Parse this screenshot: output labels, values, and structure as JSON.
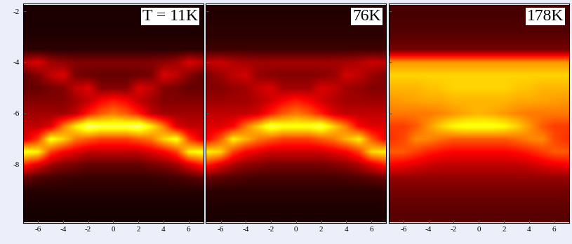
{
  "chart_data": [
    {
      "type": "heatmap",
      "annotation": "T = 11K",
      "x": [
        -7,
        -6,
        -5,
        -4,
        -3,
        -2,
        -1,
        0,
        1,
        2,
        3,
        4,
        5,
        6,
        7
      ],
      "y": [
        -2,
        -2.5,
        -3,
        -3.5,
        -4,
        -4.5,
        -5,
        -5.5,
        -6,
        -6.5,
        -7,
        -7.5,
        -8,
        -8.5,
        -9,
        -9.5,
        -10
      ],
      "values": [
        [
          0.3,
          0.3,
          0.3,
          0.3,
          0.3,
          0.3,
          0.3,
          0.3,
          0.3,
          0.3,
          0.3,
          0.3,
          0.3,
          0.3,
          0.3
        ],
        [
          0.3,
          0.3,
          0.3,
          0.3,
          0.3,
          0.3,
          0.3,
          0.3,
          0.3,
          0.3,
          0.3,
          0.3,
          0.3,
          0.3,
          0.3
        ],
        [
          0.4,
          0.4,
          0.4,
          0.4,
          0.4,
          0.4,
          0.4,
          0.4,
          0.4,
          0.4,
          0.4,
          0.4,
          0.4,
          0.4,
          0.4
        ],
        [
          0.6,
          0.6,
          0.6,
          0.6,
          0.6,
          0.6,
          0.6,
          0.6,
          0.6,
          0.6,
          0.6,
          0.6,
          0.6,
          0.6,
          0.6
        ],
        [
          3,
          3.5,
          2.5,
          2.2,
          2,
          2,
          2,
          2,
          2,
          2,
          2,
          2.2,
          2.5,
          3.5,
          3
        ],
        [
          1.5,
          2,
          3,
          3.5,
          1.8,
          1.6,
          1.5,
          1.5,
          1.5,
          1.6,
          1.8,
          3.5,
          3,
          2,
          1.5
        ],
        [
          1.5,
          1.5,
          1.8,
          2,
          3,
          3.5,
          2,
          2,
          2,
          3.5,
          3,
          2,
          1.8,
          1.5,
          1.5
        ],
        [
          2,
          2,
          2,
          2,
          2.5,
          3,
          4,
          4.5,
          4,
          3,
          2.5,
          2,
          2,
          2,
          2
        ],
        [
          2.5,
          2.5,
          2.5,
          2.5,
          3,
          4.5,
          5.5,
          6,
          5.5,
          4.5,
          3,
          2.5,
          2.5,
          2.5,
          2.5
        ],
        [
          3,
          3,
          3.5,
          6,
          8,
          9.5,
          9,
          9,
          9,
          9.5,
          8,
          6,
          3.5,
          3,
          3
        ],
        [
          3.5,
          5,
          8.5,
          7.5,
          6,
          5.5,
          5,
          5,
          5,
          5.5,
          6,
          7.5,
          8.5,
          5,
          3.5
        ],
        [
          8.5,
          8,
          5,
          4,
          3.5,
          3,
          3,
          3,
          3,
          3,
          3.5,
          4,
          5,
          8,
          8.5
        ],
        [
          4.5,
          3.5,
          2.5,
          2,
          1.8,
          1.5,
          1.5,
          1.5,
          1.5,
          1.5,
          1.8,
          2,
          2.5,
          3.5,
          4.5
        ],
        [
          1.5,
          1.2,
          1,
          0.9,
          0.8,
          0.8,
          0.8,
          0.8,
          0.8,
          0.8,
          0.8,
          0.9,
          1,
          1.2,
          1.5
        ],
        [
          0.5,
          0.5,
          0.5,
          0.5,
          0.5,
          0.5,
          0.5,
          0.5,
          0.5,
          0.5,
          0.5,
          0.5,
          0.5,
          0.5,
          0.5
        ],
        [
          0.3,
          0.3,
          0.3,
          0.3,
          0.3,
          0.3,
          0.3,
          0.3,
          0.3,
          0.3,
          0.3,
          0.3,
          0.3,
          0.3,
          0.3
        ],
        [
          0.2,
          0.2,
          0.2,
          0.2,
          0.2,
          0.2,
          0.2,
          0.2,
          0.2,
          0.2,
          0.2,
          0.2,
          0.2,
          0.2,
          0.2
        ]
      ],
      "color_range": [
        0,
        11
      ],
      "xlim": [
        -7.2,
        7.2
      ],
      "ylim": [
        -10.3,
        -1.7
      ],
      "xticks": [
        -6,
        -4,
        -2,
        0,
        2,
        4,
        6
      ],
      "yticks": [
        -8,
        -6,
        -4,
        -2
      ],
      "tick_labels": true
    },
    {
      "type": "heatmap",
      "annotation": "76K",
      "x": [
        -7,
        -6,
        -5,
        -4,
        -3,
        -2,
        -1,
        0,
        1,
        2,
        3,
        4,
        5,
        6,
        7
      ],
      "y": [
        -2,
        -2.5,
        -3,
        -3.5,
        -4,
        -4.5,
        -5,
        -5.5,
        -6,
        -6.5,
        -7,
        -7.5,
        -8,
        -8.5,
        -9,
        -9.5,
        -10
      ],
      "values": [
        [
          0.4,
          0.4,
          0.4,
          0.4,
          0.4,
          0.4,
          0.4,
          0.4,
          0.4,
          0.4,
          0.4,
          0.4,
          0.4,
          0.4,
          0.4
        ],
        [
          0.5,
          0.5,
          0.5,
          0.5,
          0.5,
          0.5,
          0.5,
          0.5,
          0.5,
          0.5,
          0.5,
          0.5,
          0.5,
          0.5,
          0.5
        ],
        [
          0.6,
          0.6,
          0.6,
          0.6,
          0.6,
          0.6,
          0.6,
          0.6,
          0.6,
          0.6,
          0.6,
          0.6,
          0.6,
          0.6,
          0.6
        ],
        [
          0.9,
          0.9,
          0.9,
          0.9,
          0.9,
          0.9,
          0.9,
          0.9,
          0.9,
          0.9,
          0.9,
          0.9,
          0.9,
          0.9,
          0.9
        ],
        [
          3,
          3.2,
          2.8,
          2.6,
          2.5,
          2.5,
          2.5,
          2.5,
          2.5,
          2.5,
          2.5,
          2.6,
          2.8,
          3.2,
          3
        ],
        [
          2,
          2.4,
          3,
          3.3,
          2.3,
          2.1,
          2,
          2,
          2,
          2.1,
          2.3,
          3.3,
          3,
          2.4,
          2
        ],
        [
          2,
          2,
          2.3,
          2.5,
          3.1,
          3.4,
          2.5,
          2.5,
          2.5,
          3.4,
          3.1,
          2.5,
          2.3,
          2,
          2
        ],
        [
          2.4,
          2.4,
          2.5,
          2.5,
          2.8,
          3.3,
          4,
          4.5,
          4,
          3.3,
          2.8,
          2.5,
          2.5,
          2.4,
          2.4
        ],
        [
          3,
          3,
          3,
          3,
          3.4,
          4.5,
          5.5,
          6,
          5.5,
          4.5,
          3.4,
          3,
          3,
          3,
          3
        ],
        [
          3.5,
          3.5,
          4,
          6,
          7.5,
          9,
          8.5,
          8.5,
          8.5,
          9,
          7.5,
          6,
          4,
          3.5,
          3.5
        ],
        [
          4,
          5.5,
          8,
          7,
          6,
          5.5,
          5,
          5,
          5,
          5.5,
          6,
          7,
          8,
          5.5,
          4
        ],
        [
          8,
          7.5,
          5,
          4,
          3.6,
          3.2,
          3.2,
          3.2,
          3.2,
          3.2,
          3.6,
          4,
          5,
          7.5,
          8
        ],
        [
          4.5,
          3.5,
          2.7,
          2.2,
          2,
          1.8,
          1.8,
          1.8,
          1.8,
          1.8,
          2,
          2.2,
          2.7,
          3.5,
          4.5
        ],
        [
          1.6,
          1.4,
          1.2,
          1.1,
          1,
          1,
          1,
          1,
          1,
          1,
          1,
          1.1,
          1.2,
          1.4,
          1.6
        ],
        [
          0.6,
          0.6,
          0.6,
          0.6,
          0.6,
          0.6,
          0.6,
          0.6,
          0.6,
          0.6,
          0.6,
          0.6,
          0.6,
          0.6,
          0.6
        ],
        [
          0.4,
          0.4,
          0.4,
          0.4,
          0.4,
          0.4,
          0.4,
          0.4,
          0.4,
          0.4,
          0.4,
          0.4,
          0.4,
          0.4,
          0.4
        ],
        [
          0.3,
          0.3,
          0.3,
          0.3,
          0.3,
          0.3,
          0.3,
          0.3,
          0.3,
          0.3,
          0.3,
          0.3,
          0.3,
          0.3,
          0.3
        ]
      ],
      "color_range": [
        0,
        11
      ],
      "xlim": [
        -7.2,
        7.2
      ],
      "ylim": [
        -10.3,
        -1.7
      ],
      "xticks": [
        -6,
        -4,
        -2,
        0,
        2,
        4,
        6
      ],
      "yticks": [
        -8,
        -6,
        -4,
        -2
      ],
      "tick_labels": "x"
    },
    {
      "type": "heatmap",
      "annotation": "178K",
      "x": [
        -7,
        -6,
        -5,
        -4,
        -3,
        -2,
        -1,
        0,
        1,
        2,
        3,
        4,
        5,
        6,
        7
      ],
      "y": [
        -2,
        -2.5,
        -3,
        -3.5,
        -4,
        -4.5,
        -5,
        -5.5,
        -6,
        -6.5,
        -7,
        -7.5,
        -8,
        -8.5,
        -9,
        -9.5,
        -10
      ],
      "values": [
        [
          1,
          1,
          1,
          1,
          1,
          1,
          1,
          1,
          1,
          1,
          1,
          1,
          1,
          1,
          1
        ],
        [
          1.1,
          1.1,
          1.1,
          1.1,
          1.1,
          1.1,
          1.1,
          1.1,
          1.1,
          1.1,
          1.1,
          1.1,
          1.1,
          1.1,
          1.1
        ],
        [
          1.3,
          1.3,
          1.3,
          1.3,
          1.3,
          1.3,
          1.3,
          1.3,
          1.3,
          1.3,
          1.3,
          1.3,
          1.3,
          1.3,
          1.3
        ],
        [
          1.8,
          1.8,
          1.8,
          1.8,
          1.8,
          1.8,
          1.8,
          1.8,
          1.8,
          1.8,
          1.8,
          1.8,
          1.8,
          1.8,
          1.8
        ],
        [
          6.5,
          6.5,
          6.5,
          6.5,
          6.5,
          6.5,
          6.5,
          6.5,
          6.5,
          6.5,
          6.5,
          6.5,
          6.5,
          6.5,
          6.5
        ],
        [
          7.5,
          7.5,
          7.5,
          7.5,
          7.5,
          7.5,
          7.5,
          7.5,
          7.5,
          7.5,
          7.5,
          7.5,
          7.5,
          7.5,
          7.5
        ],
        [
          7,
          7,
          7,
          7.2,
          7.3,
          7.5,
          7.5,
          7.5,
          7.5,
          7.5,
          7.3,
          7.2,
          7,
          7,
          7
        ],
        [
          6.5,
          6.6,
          6.7,
          6.8,
          6.8,
          7,
          7,
          7,
          7,
          7,
          6.8,
          6.8,
          6.7,
          6.6,
          6.5
        ],
        [
          6,
          6,
          6,
          6,
          6.2,
          6.5,
          6.8,
          7,
          6.8,
          6.5,
          6.2,
          6,
          6,
          6,
          6
        ],
        [
          5,
          5,
          5.5,
          6.5,
          7.5,
          8.2,
          8.5,
          8.5,
          8.5,
          8.2,
          7.5,
          6.5,
          5.5,
          5,
          5
        ],
        [
          4.8,
          5.2,
          6.3,
          6.2,
          5.8,
          5.5,
          5.5,
          5.5,
          5.5,
          5.5,
          5.8,
          6.2,
          6.3,
          5.2,
          4.8
        ],
        [
          5.5,
          5.5,
          5,
          4.5,
          4.2,
          4,
          4,
          4,
          4,
          4,
          4.2,
          4.5,
          5,
          5.5,
          5.5
        ],
        [
          4,
          3.8,
          3.5,
          3.2,
          3,
          3,
          3,
          3,
          3,
          3,
          3,
          3.2,
          3.5,
          3.8,
          4
        ],
        [
          2.3,
          2.3,
          2.3,
          2.3,
          2.3,
          2.3,
          2.3,
          2.3,
          2.3,
          2.3,
          2.3,
          2.3,
          2.3,
          2.3,
          2.3
        ],
        [
          1.8,
          1.8,
          1.8,
          1.8,
          1.8,
          1.8,
          1.8,
          1.8,
          1.8,
          1.8,
          1.8,
          1.8,
          1.8,
          1.8,
          1.8
        ],
        [
          1.5,
          1.5,
          1.5,
          1.5,
          1.5,
          1.5,
          1.5,
          1.5,
          1.5,
          1.5,
          1.5,
          1.5,
          1.5,
          1.5,
          1.5
        ],
        [
          1.3,
          1.3,
          1.3,
          1.3,
          1.3,
          1.3,
          1.3,
          1.3,
          1.3,
          1.3,
          1.3,
          1.3,
          1.3,
          1.3,
          1.3
        ]
      ],
      "color_range": [
        0,
        11
      ],
      "xlim": [
        -7.2,
        7.2
      ],
      "ylim": [
        -10.3,
        -1.7
      ],
      "xticks": [
        -6,
        -4,
        -2,
        0,
        2,
        4,
        6
      ],
      "yticks": [
        -8,
        -6,
        -4,
        -2
      ],
      "tick_labels": "x"
    }
  ]
}
